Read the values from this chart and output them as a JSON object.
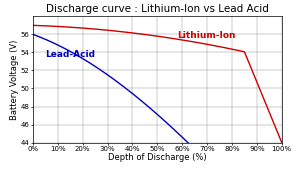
{
  "title": "Discharge curve : Lithium-Ion vs Lead Acid",
  "xlabel": "Depth of Discharge (%)",
  "ylabel": "Battery Voltage (V)",
  "ylim": [
    44,
    58
  ],
  "xlim": [
    0,
    100
  ],
  "yticks": [
    44,
    46,
    48,
    50,
    52,
    54,
    56
  ],
  "xticks": [
    0,
    10,
    20,
    30,
    40,
    50,
    60,
    70,
    80,
    90,
    100
  ],
  "xtick_labels": [
    "0%",
    "10%",
    "20%",
    "30%",
    "40%",
    "50%",
    "60%",
    "70%",
    "80%",
    "90%",
    "100%"
  ],
  "li_color": "#cc0000",
  "la_color": "#0000bb",
  "li_label": "Lithium-Ion",
  "la_label": "Lead-Acid",
  "bg_color": "#ffffff",
  "grid_color": "#999999",
  "title_fontsize": 7.5,
  "label_fontsize": 6,
  "tick_fontsize": 5,
  "annot_fontsize": 6.5
}
